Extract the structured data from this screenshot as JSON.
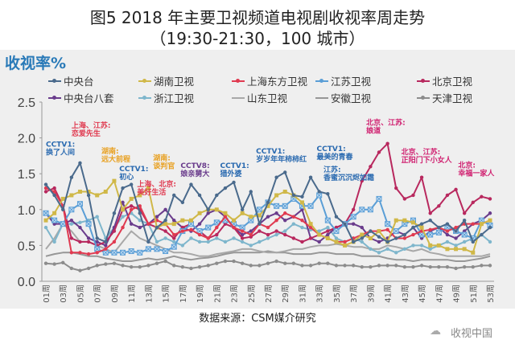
{
  "header": {
    "title_line1": "图5 2018 年主要卫视频道电视剧收视率周走势",
    "title_line2": "（19:30-21:30，100 城市）"
  },
  "footer": {
    "source": "数据来源：CSM媒介研究",
    "watermark": "收视中国",
    "watermark_icon": "wechat-icon"
  },
  "chart_data": {
    "type": "line",
    "title": "图5 2018 年主要卫视频道电视剧收视率周走势",
    "subtitle": "（19:30-21:30，100 城市）",
    "ylabel": "收视率%",
    "xlabel": "",
    "ylim": [
      0,
      2.5
    ],
    "yticks": [
      "0.0",
      "0.5",
      "1.0",
      "1.5",
      "2.0",
      "2.5"
    ],
    "grid": false,
    "legend_placement": "top",
    "x": [
      "01周",
      "02周",
      "03周",
      "04周",
      "05周",
      "06周",
      "07周",
      "08周",
      "09周",
      "10周",
      "11周",
      "12周",
      "13周",
      "14周",
      "15周",
      "16周",
      "17周",
      "18周",
      "19周",
      "20周",
      "21周",
      "22周",
      "23周",
      "24周",
      "25周",
      "26周",
      "27周",
      "28周",
      "29周",
      "30周",
      "31周",
      "32周",
      "33周",
      "34周",
      "35周",
      "36周",
      "37周",
      "38周",
      "39周",
      "40周",
      "41周",
      "42周",
      "43周",
      "44周",
      "45周",
      "46周",
      "47周",
      "48周",
      "49周",
      "50周",
      "51周",
      "52周",
      "53周"
    ],
    "xtick_labels": [
      "01周",
      "03周",
      "05周",
      "07周",
      "09周",
      "11周",
      "13周",
      "15周",
      "17周",
      "19周",
      "21周",
      "23周",
      "25周",
      "27周",
      "29周",
      "31周",
      "33周",
      "35周",
      "37周",
      "39周",
      "41周",
      "43周",
      "45周",
      "47周",
      "49周",
      "51周",
      "53周"
    ],
    "series": [
      {
        "name": "中央台",
        "color": "#4a6a8c",
        "marker": "dot",
        "values": [
          1.35,
          1.2,
          1.0,
          1.45,
          1.65,
          1.2,
          0.6,
          0.55,
          0.95,
          1.3,
          1.35,
          0.95,
          0.55,
          0.75,
          0.85,
          1.2,
          1.1,
          1.35,
          1.2,
          1.0,
          1.2,
          1.3,
          1.38,
          1.0,
          1.25,
          0.8,
          1.1,
          1.45,
          1.52,
          1.2,
          1.18,
          1.45,
          1.25,
          1.22,
          0.9,
          0.8,
          0.55,
          0.6,
          0.7,
          0.62,
          0.55,
          0.6,
          0.65,
          0.75,
          0.8,
          0.85,
          0.75,
          0.8,
          0.7,
          0.85,
          0.55,
          0.65,
          0.75
        ]
      },
      {
        "name": "湖南卫视",
        "color": "#d0b848",
        "marker": "square",
        "values": [
          0.85,
          0.95,
          1.15,
          1.2,
          1.25,
          1.25,
          1.2,
          1.25,
          1.4,
          1.0,
          1.15,
          1.2,
          1.3,
          0.75,
          0.8,
          0.8,
          0.85,
          0.85,
          0.95,
          1.0,
          1.0,
          0.95,
          0.85,
          0.95,
          0.9,
          0.92,
          1.05,
          1.2,
          1.25,
          1.2,
          1.1,
          0.8,
          0.65,
          0.6,
          0.55,
          0.5,
          0.55,
          0.65,
          0.6,
          0.7,
          0.55,
          0.85,
          0.85,
          0.82,
          0.75,
          0.5,
          0.5,
          0.45,
          0.45,
          0.45,
          0.4,
          0.8,
          0.85
        ]
      },
      {
        "name": "上海东方卫视",
        "color": "#e03a50",
        "marker": "dot",
        "values": [
          1.3,
          1.25,
          1.05,
          0.4,
          0.4,
          0.38,
          0.4,
          0.45,
          0.55,
          0.75,
          1.0,
          1.05,
          0.8,
          0.85,
          0.8,
          0.65,
          0.7,
          0.72,
          0.65,
          0.6,
          0.75,
          0.9,
          0.75,
          0.7,
          0.65,
          0.8,
          0.75,
          0.85,
          0.95,
          0.9,
          0.85,
          0.75,
          0.65,
          0.6,
          0.55,
          0.55,
          0.6,
          0.65,
          0.7,
          0.7,
          0.72,
          0.6,
          0.6,
          0.65,
          0.7,
          0.72,
          0.75,
          0.7,
          0.75,
          0.8,
          0.8,
          0.8,
          0.85
        ]
      },
      {
        "name": "江苏卫视",
        "color": "#5a9ed6",
        "marker": "x",
        "values": [
          0.95,
          0.85,
          0.8,
          1.0,
          1.08,
          0.8,
          0.45,
          0.4,
          0.4,
          0.4,
          0.42,
          0.4,
          0.45,
          0.45,
          0.42,
          0.48,
          0.7,
          0.8,
          0.7,
          0.75,
          0.82,
          0.85,
          0.8,
          0.75,
          0.85,
          1.0,
          1.1,
          1.05,
          1.05,
          1.15,
          1.05,
          1.05,
          1.2,
          0.85,
          0.7,
          0.8,
          0.9,
          1.0,
          1.0,
          1.15,
          0.8,
          0.7,
          0.8,
          0.85,
          0.65,
          0.65,
          0.68,
          0.75,
          0.7,
          0.65,
          0.6,
          0.85,
          0.78
        ]
      },
      {
        "name": "北京卫视",
        "color": "#b8285e",
        "marker": "dot",
        "values": [
          1.25,
          1.3,
          1.05,
          0.6,
          0.55,
          0.55,
          0.5,
          0.55,
          0.7,
          1.0,
          1.05,
          1.0,
          0.8,
          0.75,
          0.7,
          0.6,
          0.75,
          0.8,
          0.7,
          0.6,
          0.65,
          0.8,
          0.75,
          0.6,
          0.62,
          0.7,
          0.65,
          0.7,
          0.65,
          0.6,
          0.55,
          0.6,
          0.65,
          0.7,
          0.75,
          0.8,
          1.0,
          1.4,
          1.6,
          1.8,
          1.92,
          1.3,
          1.15,
          1.2,
          1.45,
          0.95,
          1.05,
          1.2,
          1.28,
          0.95,
          1.1,
          1.18,
          1.15
        ]
      },
      {
        "name": "中央台八套",
        "color": "#6a3c8c",
        "marker": "dot",
        "values": [
          0.95,
          0.8,
          0.8,
          0.85,
          0.75,
          0.6,
          0.55,
          0.5,
          0.75,
          1.1,
          0.8,
          0.75,
          0.8,
          0.9,
          1.0,
          0.85,
          0.75,
          0.7,
          0.8,
          0.95,
          1.0,
          0.9,
          0.75,
          0.65,
          0.7,
          0.8,
          0.9,
          0.95,
          0.85,
          0.9,
          1.0,
          0.6,
          0.55,
          0.65,
          0.75,
          0.8,
          0.8,
          0.75,
          0.6,
          0.55,
          0.6,
          0.7,
          0.65,
          0.75,
          0.6,
          0.7,
          0.75,
          0.65,
          0.6,
          0.7,
          0.8,
          0.85,
          0.95
        ]
      },
      {
        "name": "浙江卫视",
        "color": "#7eb6cc",
        "marker": "dot",
        "values": [
          0.75,
          0.55,
          0.8,
          0.8,
          0.82,
          0.85,
          0.9,
          0.6,
          0.75,
          0.9,
          0.95,
          0.85,
          0.8,
          0.55,
          0.6,
          0.55,
          0.5,
          0.6,
          0.55,
          0.55,
          0.6,
          0.55,
          0.6,
          0.55,
          0.5,
          0.55,
          0.6,
          0.65,
          0.7,
          0.8,
          0.75,
          0.72,
          0.7,
          0.75,
          0.6,
          0.55,
          0.6,
          0.55,
          0.45,
          0.4,
          0.45,
          0.4,
          0.45,
          0.5,
          0.5,
          0.45,
          0.5,
          0.55,
          0.5,
          0.55,
          0.6,
          0.65,
          0.55
        ]
      },
      {
        "name": "山东卫视",
        "color": "#a8a8a8",
        "marker": "none",
        "values": [
          0.45,
          0.6,
          0.8,
          0.7,
          0.55,
          0.55,
          0.5,
          0.45,
          0.4,
          0.55,
          0.7,
          0.6,
          0.55,
          0.5,
          0.45,
          0.4,
          0.4,
          0.38,
          0.35,
          0.35,
          0.38,
          0.4,
          0.42,
          0.45,
          0.45,
          0.42,
          0.4,
          0.4,
          0.42,
          0.45,
          0.45,
          0.48,
          0.5,
          0.5,
          0.52,
          0.5,
          0.48,
          0.48,
          0.45,
          0.45,
          0.5,
          0.48,
          0.45,
          0.42,
          0.45,
          0.4,
          0.38,
          0.35,
          0.35,
          0.35,
          0.35,
          0.35,
          0.38
        ]
      },
      {
        "name": "安徽卫视",
        "color": "#979797",
        "marker": "none",
        "values": [
          0.35,
          0.38,
          0.4,
          0.4,
          0.38,
          0.35,
          0.35,
          0.32,
          0.3,
          0.28,
          0.28,
          0.3,
          0.32,
          0.3,
          0.32,
          0.35,
          0.32,
          0.3,
          0.32,
          0.33,
          0.35,
          0.38,
          0.4,
          0.4,
          0.4,
          0.4,
          0.42,
          0.4,
          0.4,
          0.38,
          0.38,
          0.38,
          0.4,
          0.4,
          0.38,
          0.38,
          0.38,
          0.35,
          0.35,
          0.35,
          0.32,
          0.3,
          0.3,
          0.28,
          0.3,
          0.3,
          0.3,
          0.3,
          0.28,
          0.28,
          0.3,
          0.32,
          0.35
        ]
      },
      {
        "name": "天津卫视",
        "color": "#8c8c8c",
        "marker": "dot",
        "values": [
          0.25,
          0.24,
          0.26,
          0.18,
          0.15,
          0.18,
          0.22,
          0.24,
          0.25,
          0.22,
          0.2,
          0.2,
          0.22,
          0.25,
          0.28,
          0.22,
          0.2,
          0.18,
          0.2,
          0.22,
          0.25,
          0.28,
          0.28,
          0.25,
          0.22,
          0.22,
          0.25,
          0.28,
          0.25,
          0.25,
          0.22,
          0.22,
          0.25,
          0.25,
          0.22,
          0.22,
          0.22,
          0.2,
          0.2,
          0.22,
          0.22,
          0.22,
          0.2,
          0.2,
          0.22,
          0.2,
          0.2,
          0.2,
          0.18,
          0.2,
          0.2,
          0.22,
          0.22
        ]
      }
    ],
    "annotations": [
      {
        "lines": [
          "CCTV1:",
          "换了人间"
        ],
        "color": "#2a6ab0",
        "week": 1,
        "value": 1.88
      },
      {
        "lines": [
          "上海、江苏:",
          "恋爱先生"
        ],
        "color": "#e03a50",
        "week": 4,
        "value": 2.06
      },
      {
        "lines": [
          "湖南:",
          "远大前程"
        ],
        "color": "#e8a020",
        "week": 7.5,
        "value": 1.68
      },
      {
        "lines": [
          "CCTV1:",
          "初心"
        ],
        "color": "#2a6ab0",
        "week": 9.6,
        "value": 1.56
      },
      {
        "lines": [
          "湖南:",
          "谈判官"
        ],
        "color": "#e8a020",
        "week": 12.7,
        "value": 1.62
      },
      {
        "lines": [
          "上海、北京:",
          "美好生活"
        ],
        "color": "#e03a50",
        "week": 11.3,
        "value": 1.38
      },
      {
        "lines": [
          "CCTV8:",
          "娘亲舅大"
        ],
        "color": "#6a3c8c",
        "week": 16.3,
        "value": 1.58
      },
      {
        "lines": [
          "CCTV1:",
          "猎外婆"
        ],
        "color": "#2a6ab0",
        "week": 21.4,
        "value": 1.58
      },
      {
        "lines": [
          "CCTV1:",
          "岁岁年年柿柿红"
        ],
        "color": "#2a6ab0",
        "week": 25.6,
        "value": 1.78
      },
      {
        "lines": [
          "CCTV1:",
          "最美的青春"
        ],
        "color": "#2a6ab0",
        "week": 32.7,
        "value": 1.76
      },
      {
        "lines": [
          "江苏:",
          "香蜜沉沉烬如霜"
        ],
        "color": "#2a6ab0",
        "week": 33.5,
        "value": 1.56
      },
      {
        "lines": [
          "北京、江苏:",
          "娘道"
        ],
        "color": "#d02070",
        "week": 38.5,
        "value": 2.18
      },
      {
        "lines": [
          "北京、江苏:",
          "正阳门下小女人"
        ],
        "color": "#d02070",
        "week": 42.6,
        "value": 1.75
      },
      {
        "lines": [
          "北京:",
          "幸福一家人"
        ],
        "color": "#d02070",
        "week": 48.8,
        "value": 1.62
      }
    ]
  }
}
